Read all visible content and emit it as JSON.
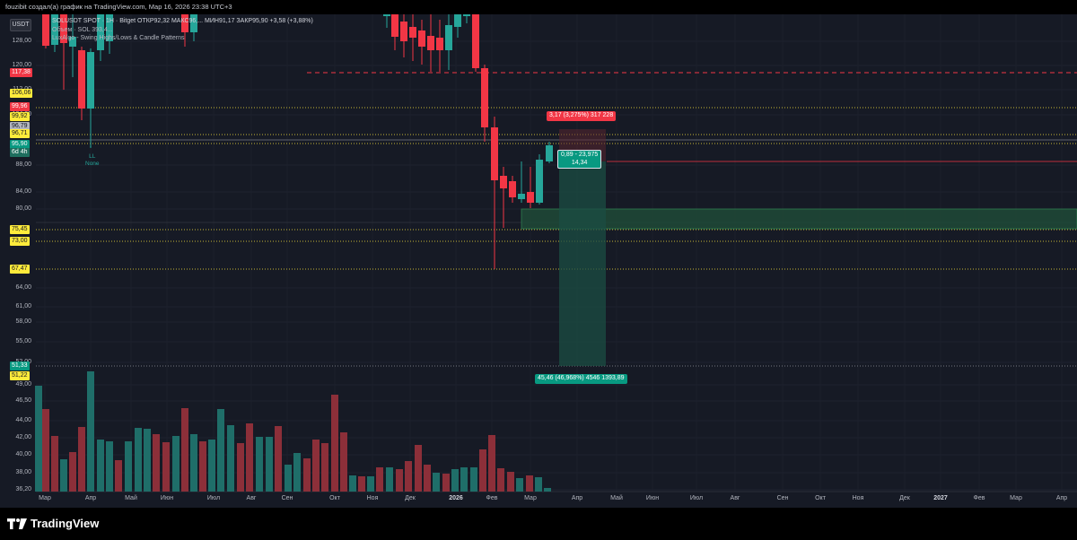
{
  "header": {
    "attribution": "fouzibit создал(а) график на TradingView.com, Мар 16, 2026 23:38 UTC+3"
  },
  "legend": {
    "symbol_line": "SOLUSDT SPOT · 1Н · Bitget  ОТКР92,32  МАКС96,...  МИН91,17  ЗАКР95,90  +3,58 (+3,88%)",
    "volume_line": "Объем · SOL  393,4...",
    "indicator_line": "LuxAlgo - Swing Highs/Lows & Candle Patterns"
  },
  "currency_badge": "USDT",
  "price_axis": [
    "128,00",
    "120,00",
    "112,00",
    "104,00",
    "88,00",
    "84,00",
    "80,00",
    "64,00",
    "61,00",
    "58,00",
    "55,00",
    "52,00",
    "49,00",
    "46,50",
    "44,00",
    "42,00",
    "40,00",
    "38,00",
    "36,20"
  ],
  "price_tags": [
    {
      "text": "117,38",
      "style": "r"
    },
    {
      "text": "106,06",
      "style": "y"
    },
    {
      "text": "99,96",
      "style": "r"
    },
    {
      "text": "99,92",
      "style": "y"
    },
    {
      "text": "96,79",
      "style": "gr"
    },
    {
      "text": "96,71",
      "style": "y"
    },
    {
      "text": "95,90",
      "style": "g"
    },
    {
      "text": "6d 4h",
      "style": "dk"
    },
    {
      "text": "75,45",
      "style": "y"
    },
    {
      "text": "73,00",
      "style": "y"
    },
    {
      "text": "67,47",
      "style": "y"
    },
    {
      "text": "51,33",
      "style": "g"
    },
    {
      "text": "51,22",
      "style": "y"
    }
  ],
  "time_axis": [
    {
      "text": "Мар",
      "bold": false
    },
    {
      "text": "Апр",
      "bold": false
    },
    {
      "text": "Май",
      "bold": false
    },
    {
      "text": "Июн",
      "bold": false
    },
    {
      "text": "Июл",
      "bold": false
    },
    {
      "text": "Авг",
      "bold": false
    },
    {
      "text": "Сен",
      "bold": false
    },
    {
      "text": "Окт",
      "bold": false
    },
    {
      "text": "Ноя",
      "bold": false
    },
    {
      "text": "Дек",
      "bold": false
    },
    {
      "text": "2026",
      "bold": true
    },
    {
      "text": "Фев",
      "bold": false
    },
    {
      "text": "Мар",
      "bold": false
    },
    {
      "text": "Апр",
      "bold": false
    },
    {
      "text": "Май",
      "bold": false
    },
    {
      "text": "Июн",
      "bold": false
    },
    {
      "text": "Июл",
      "bold": false
    },
    {
      "text": "Авг",
      "bold": false
    },
    {
      "text": "Сен",
      "bold": false
    },
    {
      "text": "Окт",
      "bold": false
    },
    {
      "text": "Ноя",
      "bold": false
    },
    {
      "text": "Дек",
      "bold": false
    },
    {
      "text": "2027",
      "bold": true
    },
    {
      "text": "Фев",
      "bold": false
    },
    {
      "text": "Мар",
      "bold": false
    },
    {
      "text": "Апр",
      "bold": false
    }
  ],
  "swing_label": {
    "line1": "LL",
    "line2": "None"
  },
  "position_tool": {
    "stop_label": "3,17 (3,275%) 317 228",
    "entry_label_1": "0,89 - 23,975",
    "entry_label_2": "14,34",
    "target_label": "45,46 (46,968%) 4546 1393,89"
  },
  "colors": {
    "background": "#161a25",
    "up": "#26a69a",
    "down": "#f23645",
    "volume_up": "#1f6e69",
    "volume_down": "#8c2f39"
  },
  "footer": {
    "brand": "TradingView"
  }
}
